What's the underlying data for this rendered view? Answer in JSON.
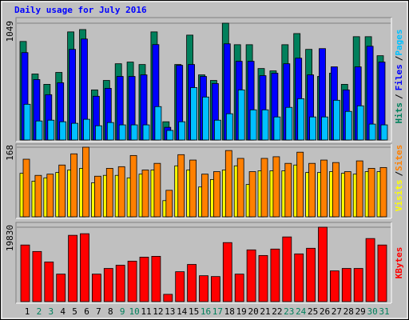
{
  "chart_data": {
    "type": "bar",
    "title": "Daily usage for July 2016",
    "title_color": "#0000ff",
    "separator": "/",
    "categories": [
      "1",
      "2",
      "3",
      "4",
      "5",
      "6",
      "7",
      "8",
      "9",
      "10",
      "11",
      "12",
      "13",
      "14",
      "15",
      "16",
      "17",
      "18",
      "19",
      "20",
      "21",
      "22",
      "23",
      "24",
      "25",
      "26",
      "27",
      "28",
      "29",
      "30",
      "31"
    ],
    "category_colors": [
      "#000000",
      "#00805c",
      "#00805c",
      "#000000",
      "#000000",
      "#000000",
      "#000000",
      "#000000",
      "#00805c",
      "#00805c",
      "#000000",
      "#000000",
      "#000000",
      "#000000",
      "#000000",
      "#00805c",
      "#00805c",
      "#000000",
      "#000000",
      "#000000",
      "#000000",
      "#000000",
      "#00805c",
      "#00805c",
      "#000000",
      "#000000",
      "#000000",
      "#000000",
      "#000000",
      "#00805c",
      "#00805c"
    ],
    "panels": [
      {
        "ylim": [
          0,
          1049
        ],
        "yticks": [
          1049
        ],
        "series": [
          {
            "name": "Hits",
            "color": "#00805c",
            "values": [
              885,
              593,
              500,
              607,
              971,
              992,
              450,
              535,
              685,
              700,
              678,
              971,
              164,
              678,
              942,
              585,
              535,
              1049,
              856,
              856,
              642,
              621,
              856,
              956,
              814,
              571,
              600,
              500,
              928,
              928,
              757
            ]
          },
          {
            "name": "Files",
            "color": "#0000ff",
            "values": [
              785,
              543,
              407,
              514,
              814,
              907,
              393,
              464,
              571,
              571,
              585,
              857,
              114,
              671,
              678,
              571,
              507,
              864,
              707,
              707,
              578,
              600,
              685,
              735,
              585,
              821,
              657,
              450,
              657,
              842,
              700
            ]
          },
          {
            "name": "Pages",
            "color": "#00c0ff",
            "values": [
              321,
              171,
              178,
              164,
              150,
              186,
              128,
              157,
              136,
              136,
              136,
              300,
              86,
              164,
              471,
              386,
              178,
              236,
              450,
              271,
              271,
              207,
              293,
              371,
              207,
              207,
              357,
              257,
              307,
              143,
              136
            ]
          }
        ]
      },
      {
        "ylim": [
          0,
          168
        ],
        "yticks": [
          168
        ],
        "series": [
          {
            "name": "Visits",
            "color": "#ffff00",
            "values": [
              105,
              86,
              94,
              107,
              113,
              117,
              82,
              100,
              100,
              94,
              103,
              113,
              39,
              123,
              113,
              72,
              90,
              113,
              123,
              78,
              111,
              111,
              111,
              125,
              107,
              107,
              109,
              105,
              103,
              109,
              109
            ]
          },
          {
            "name": "Sites",
            "color": "#ff8000",
            "values": [
              139,
              100,
              103,
              125,
              152,
              168,
              98,
              117,
              121,
              148,
              113,
              129,
              64,
              150,
              137,
              103,
              109,
              160,
              141,
              109,
              141,
              145,
              129,
              156,
              129,
              137,
              131,
              109,
              135,
              117,
              119
            ]
          }
        ]
      },
      {
        "ylim": [
          0,
          19830
        ],
        "yticks": [
          19830
        ],
        "series": [
          {
            "name": "KBytes",
            "color": "#ff0000",
            "values": [
              15090,
              13360,
              10560,
              7330,
              17670,
              18100,
              7330,
              8840,
              9700,
              10780,
              11850,
              12070,
              1940,
              7970,
              9910,
              6900,
              6680,
              15730,
              7330,
              13790,
              12290,
              14010,
              17240,
              12720,
              14220,
              19830,
              8190,
              8840,
              8840,
              16810,
              15090
            ]
          }
        ]
      }
    ]
  }
}
